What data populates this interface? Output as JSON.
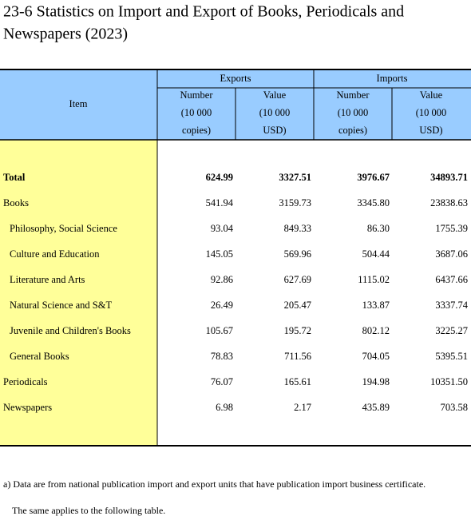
{
  "header": {
    "title_lines": [
      "23-6  Statistics on Import and Export of Books, Periodicals and",
      "Newspapers (2023)"
    ]
  },
  "table": {
    "item_header": "Item",
    "groups": [
      "Exports",
      "Imports"
    ],
    "subheaders": [
      [
        "Number",
        "(10 000",
        "copies)"
      ],
      [
        "Value",
        "(10 000",
        "USD)"
      ],
      [
        "Number",
        "(10 000",
        "copies)"
      ],
      [
        "Value",
        "(10 000",
        "USD)"
      ]
    ],
    "rows": [
      [
        "Total",
        "624.99",
        "3327.51",
        "3976.67",
        "34893.71"
      ],
      [
        "Books",
        "541.94",
        "3159.73",
        "3345.80",
        "23838.63"
      ],
      [
        "Philosophy, Social Science",
        "93.04",
        "849.33",
        "86.30",
        "1755.39"
      ],
      [
        "Culture and Education",
        "145.05",
        "569.96",
        "504.44",
        "3687.06"
      ],
      [
        "Literature and Arts",
        "92.86",
        "627.69",
        "1115.02",
        "6437.66"
      ],
      [
        "Natural Science and S&T",
        "26.49",
        "205.47",
        "133.87",
        "3337.74"
      ],
      [
        "Juvenile and Children's Books",
        "105.67",
        "195.72",
        "802.12",
        "3225.27"
      ],
      [
        "General Books",
        "78.83",
        "711.56",
        "704.05",
        "5395.51"
      ],
      [
        "Periodicals",
        "76.07",
        "165.61",
        "194.98",
        "10351.50"
      ],
      [
        "Newspapers",
        "6.98",
        "2.17",
        "435.89",
        "703.58"
      ]
    ]
  },
  "footnotes": [
    "a) Data are from national publication import and export units that have publication import business certificate.",
    "The same applies to the following table."
  ]
}
